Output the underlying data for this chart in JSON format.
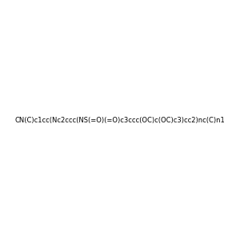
{
  "smiles": "CN(C)c1cc(Nc2ccc(NS(=O)(=O)c3ccc(OC)c(OC)c3)cc2)nc(C)n1",
  "image_size": 300,
  "background_color": "#e8e8e8",
  "title": ""
}
